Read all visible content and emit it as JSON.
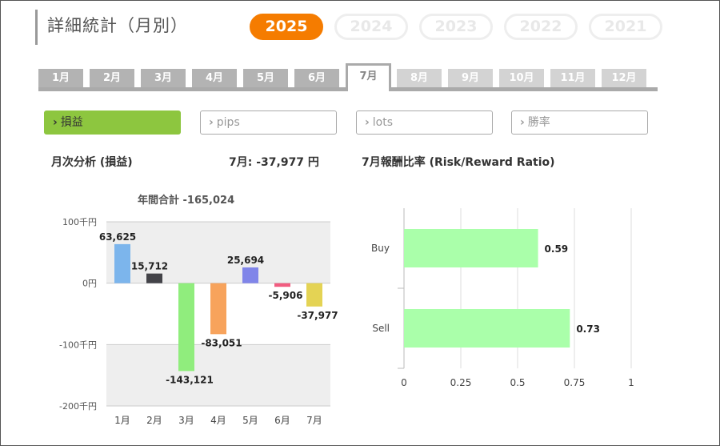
{
  "page_title": "詳細統計（月別）",
  "years": [
    {
      "label": "2025",
      "active": true
    },
    {
      "label": "2024",
      "active": false
    },
    {
      "label": "2023",
      "active": false
    },
    {
      "label": "2022",
      "active": false
    },
    {
      "label": "2021",
      "active": false
    }
  ],
  "months": [
    "1月",
    "2月",
    "3月",
    "4月",
    "5月",
    "6月",
    "7月",
    "8月",
    "9月",
    "10月",
    "11月",
    "12月"
  ],
  "selected_month_index": 6,
  "filters": [
    {
      "label": "損益",
      "active": true
    },
    {
      "label": "pips",
      "active": false
    },
    {
      "label": "lots",
      "active": false
    },
    {
      "label": "勝率",
      "active": false
    }
  ],
  "filter_icon": "chevron-right-icon",
  "left_section": {
    "title": "月次分析 (損益)",
    "month_value": "7月:  -37,977 円"
  },
  "right_section": {
    "title": "7月報酬比率 (Risk/Reward Ratio)"
  },
  "colors": {
    "accent": "#f57c00",
    "active_filter": "#8dc63f",
    "rr_bar": "#aaffaa"
  },
  "chart_data": [
    {
      "type": "bar",
      "title": "年間合計 -165,024",
      "categories": [
        "1月",
        "2月",
        "3月",
        "4月",
        "5月",
        "6月",
        "7月"
      ],
      "values": [
        63625,
        15712,
        -143121,
        -83051,
        25694,
        -5906,
        -37977
      ],
      "value_labels": [
        "63,625",
        "15,712",
        "-143,121",
        "-83,051",
        "25,694",
        "-5,906",
        "-37,977"
      ],
      "bar_colors": [
        "#7cb5ec",
        "#434348",
        "#90ed7d",
        "#f7a35c",
        "#8085e9",
        "#f15c80",
        "#e4d354"
      ],
      "yticks": [
        {
          "value": 100000,
          "label": "100千円"
        },
        {
          "value": 0,
          "label": "0円"
        },
        {
          "value": -100000,
          "label": "-100千円"
        },
        {
          "value": -200000,
          "label": "-200千円"
        }
      ],
      "ylim": [
        -200000,
        100000
      ],
      "grid": true
    },
    {
      "type": "bar",
      "orientation": "horizontal",
      "categories": [
        "Buy",
        "Sell"
      ],
      "values": [
        0.59,
        0.73
      ],
      "value_labels": [
        "0.59",
        "0.73"
      ],
      "xticks": [
        "0",
        "0.25",
        "0.5",
        "0.75",
        "1"
      ],
      "xlim": [
        0,
        1
      ],
      "grid": true
    }
  ]
}
